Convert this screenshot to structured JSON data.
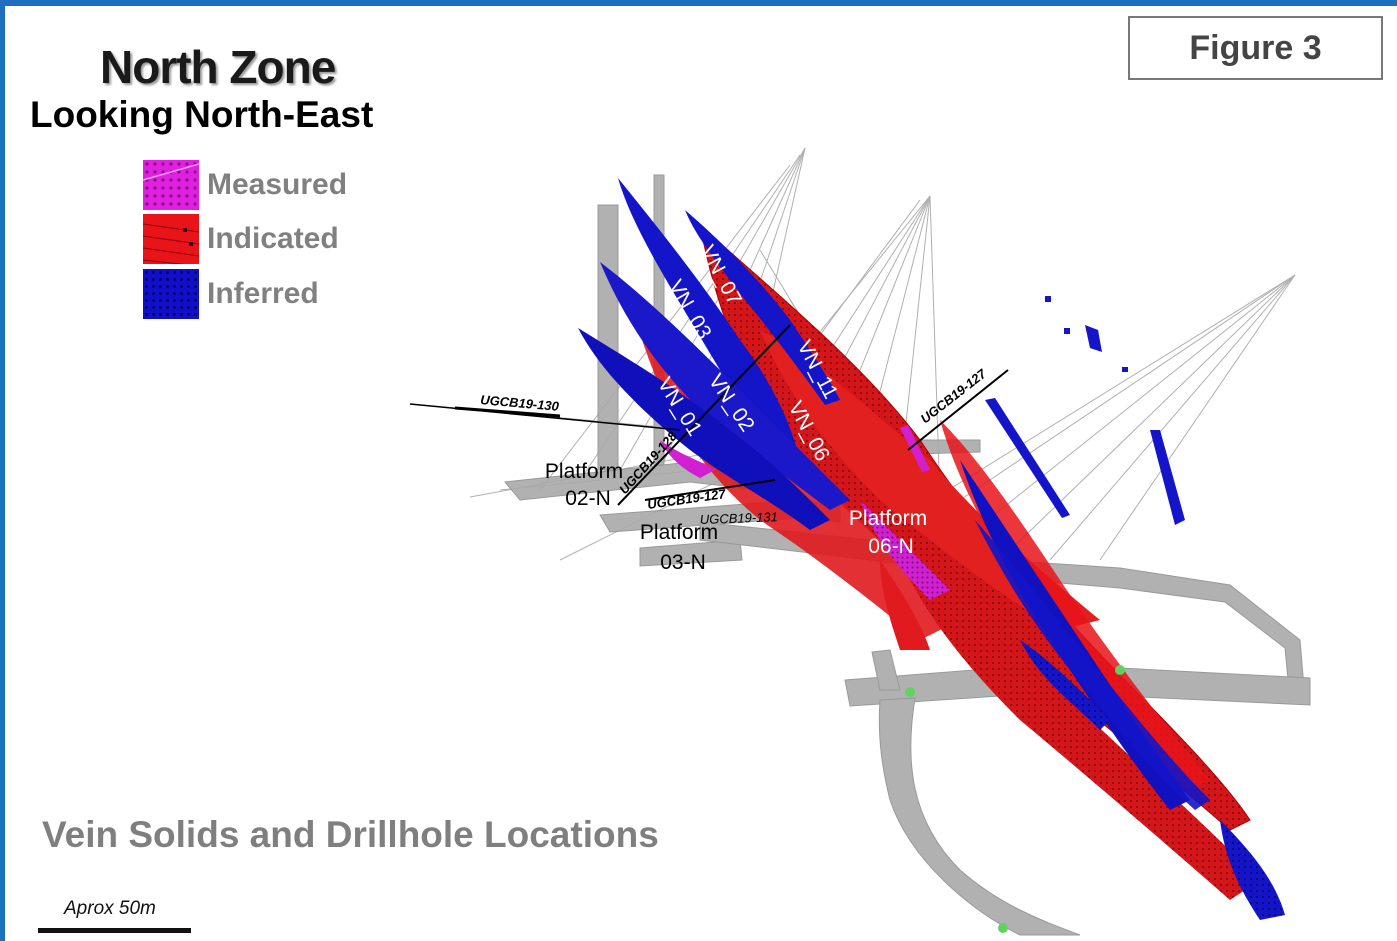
{
  "title": "North Zone",
  "subtitle": "Looking North-East",
  "figure_label": "Figure 3",
  "legend": [
    {
      "label": "Measured",
      "color": "#e020e0"
    },
    {
      "label": "Indicated",
      "color": "#e8141a"
    },
    {
      "label": "Inferred",
      "color": "#1010cc"
    }
  ],
  "veins": [
    "VN_07",
    "VN_03",
    "VN_11",
    "VN_01",
    "VN_02",
    "VN_06"
  ],
  "drillholes": [
    "UGCB19-130",
    "UGCB19-128",
    "UGCB19-127",
    "UGCB19-131",
    "UGCB19-127"
  ],
  "platforms": [
    {
      "line1": "Platform",
      "line2": "02-N"
    },
    {
      "line1": "Platform",
      "line2": "03-N"
    },
    {
      "line1": "Platform",
      "line2": "06-N"
    }
  ],
  "caption": "Vein Solids and Drillhole Locations",
  "scale_label": "Aprox 50m",
  "colors": {
    "border": "#1f6fc0",
    "tunnel": "#a8a8a8",
    "indicated": "#e8141a",
    "inferred": "#1010cc",
    "measured": "#e020e0"
  }
}
